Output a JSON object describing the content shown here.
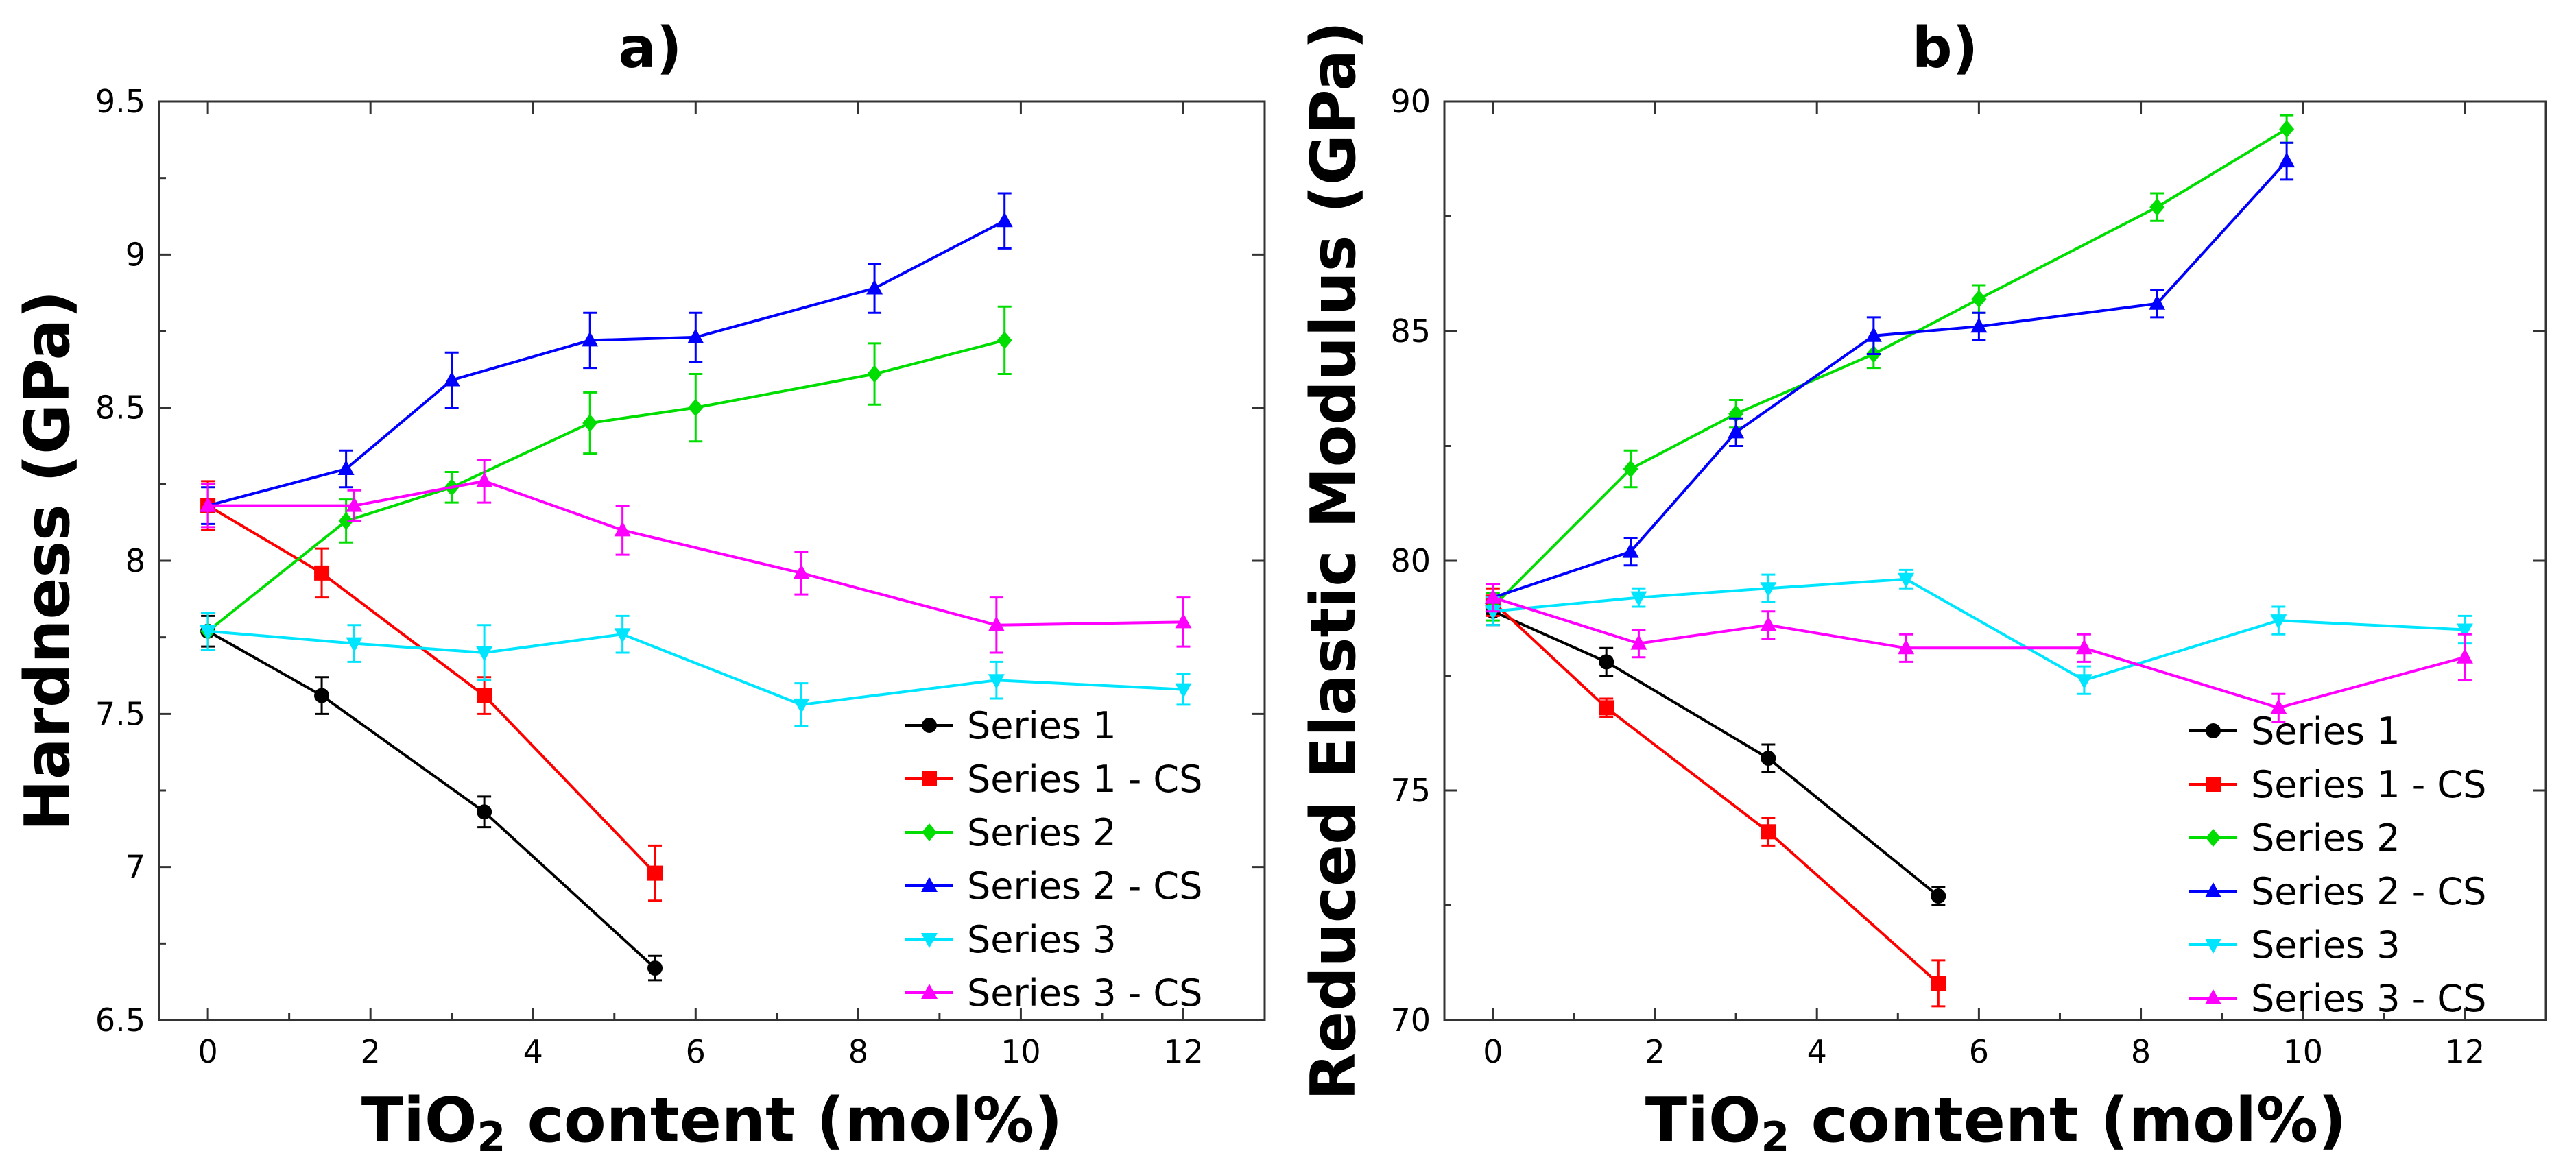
{
  "chart_data": [
    {
      "type": "line",
      "title": "a)",
      "xlabel_main": "TiO",
      "xlabel_sub": "2",
      "xlabel_rest": " content (mol%)",
      "ylabel": "Hardness (GPa)",
      "xlim": [
        -0.6,
        13
      ],
      "ylim": [
        6.5,
        9.5
      ],
      "xticks": [
        0,
        2,
        4,
        6,
        8,
        10,
        12
      ],
      "yticks": [
        6.5,
        7,
        7.5,
        8,
        8.5,
        9,
        9.5
      ],
      "legend": "bottom-right",
      "series": [
        {
          "name": "Series 1",
          "color": "#000000",
          "marker": "circle",
          "x": [
            0,
            1.4,
            3.4,
            5.5
          ],
          "y": [
            7.77,
            7.56,
            7.18,
            6.67
          ],
          "err": [
            0.05,
            0.06,
            0.05,
            0.04
          ]
        },
        {
          "name": "Series 1 - CS",
          "color": "#ff0000",
          "marker": "square",
          "x": [
            0,
            1.4,
            3.4,
            5.5
          ],
          "y": [
            8.18,
            7.96,
            7.56,
            6.98
          ],
          "err": [
            0.08,
            0.08,
            0.06,
            0.09
          ]
        },
        {
          "name": "Series 2",
          "color": "#00dd00",
          "marker": "diamond",
          "x": [
            0,
            1.7,
            3,
            4.7,
            6,
            8.2,
            9.8
          ],
          "y": [
            7.77,
            8.13,
            8.24,
            8.45,
            8.5,
            8.61,
            8.72
          ],
          "err": [
            0.06,
            0.07,
            0.05,
            0.1,
            0.11,
            0.1,
            0.11
          ]
        },
        {
          "name": "Series 2 - CS",
          "color": "#0000ff",
          "marker": "triangle",
          "x": [
            0,
            1.7,
            3,
            4.7,
            6,
            8.2,
            9.8
          ],
          "y": [
            8.18,
            8.3,
            8.59,
            8.72,
            8.73,
            8.89,
            9.11
          ],
          "err": [
            0.06,
            0.06,
            0.09,
            0.09,
            0.08,
            0.08,
            0.09
          ]
        },
        {
          "name": "Series 3",
          "color": "#00e5ff",
          "marker": "triangle-down",
          "x": [
            0,
            1.8,
            3.4,
            5.1,
            7.3,
            9.7,
            12
          ],
          "y": [
            7.77,
            7.73,
            7.7,
            7.76,
            7.53,
            7.61,
            7.58
          ],
          "err": [
            0.06,
            0.06,
            0.09,
            0.06,
            0.07,
            0.06,
            0.05
          ]
        },
        {
          "name": "Series 3 - CS",
          "color": "#ff00ff",
          "marker": "triangle",
          "x": [
            0,
            1.8,
            3.4,
            5.1,
            7.3,
            9.7,
            12
          ],
          "y": [
            8.18,
            8.18,
            8.26,
            8.1,
            7.96,
            7.79,
            7.8
          ],
          "err": [
            0.07,
            0.05,
            0.07,
            0.08,
            0.07,
            0.09,
            0.08
          ]
        }
      ]
    },
    {
      "type": "line",
      "title": "b)",
      "xlabel_main": "TiO",
      "xlabel_sub": "2",
      "xlabel_rest": " content (mol%)",
      "ylabel": "Reduced Elastic Modulus (GPa)",
      "xlim": [
        -0.6,
        13
      ],
      "ylim": [
        70,
        90
      ],
      "xticks": [
        0,
        2,
        4,
        6,
        8,
        10,
        12
      ],
      "yticks": [
        70,
        75,
        80,
        85,
        90
      ],
      "legend": "bottom-right",
      "series": [
        {
          "name": "Series 1",
          "color": "#000000",
          "marker": "circle",
          "x": [
            0,
            1.4,
            3.4,
            5.5
          ],
          "y": [
            78.9,
            77.8,
            75.7,
            72.7
          ],
          "err": [
            0.3,
            0.3,
            0.3,
            0.2
          ]
        },
        {
          "name": "Series 1 - CS",
          "color": "#ff0000",
          "marker": "square",
          "x": [
            0,
            1.4,
            3.4,
            5.5
          ],
          "y": [
            79.1,
            76.8,
            74.1,
            70.8
          ],
          "err": [
            0.3,
            0.2,
            0.3,
            0.5
          ]
        },
        {
          "name": "Series 2",
          "color": "#00dd00",
          "marker": "diamond",
          "x": [
            0,
            1.7,
            3,
            4.7,
            6,
            8.2,
            9.8
          ],
          "y": [
            79.0,
            82.0,
            83.2,
            84.5,
            85.7,
            87.7,
            89.4
          ],
          "err": [
            0.3,
            0.4,
            0.3,
            0.3,
            0.3,
            0.3,
            0.3
          ]
        },
        {
          "name": "Series 2 - CS",
          "color": "#0000ff",
          "marker": "triangle",
          "x": [
            0,
            1.7,
            3,
            4.7,
            6,
            8.2,
            9.8
          ],
          "y": [
            79.2,
            80.2,
            82.8,
            84.9,
            85.1,
            85.6,
            88.7
          ],
          "err": [
            0.3,
            0.3,
            0.3,
            0.4,
            0.3,
            0.3,
            0.4
          ]
        },
        {
          "name": "Series 3",
          "color": "#00e5ff",
          "marker": "triangle-down",
          "x": [
            0,
            1.8,
            3.4,
            5.1,
            7.3,
            9.7,
            12
          ],
          "y": [
            78.9,
            79.2,
            79.4,
            79.6,
            77.4,
            78.7,
            78.5
          ],
          "err": [
            0.3,
            0.2,
            0.3,
            0.2,
            0.3,
            0.3,
            0.3
          ]
        },
        {
          "name": "Series 3 - CS",
          "color": "#ff00ff",
          "marker": "triangle",
          "x": [
            0,
            1.8,
            3.4,
            5.1,
            7.3,
            9.7,
            12
          ],
          "y": [
            79.2,
            78.2,
            78.6,
            78.1,
            78.1,
            76.8,
            77.9
          ],
          "err": [
            0.3,
            0.3,
            0.3,
            0.3,
            0.3,
            0.3,
            0.5
          ]
        }
      ]
    }
  ]
}
